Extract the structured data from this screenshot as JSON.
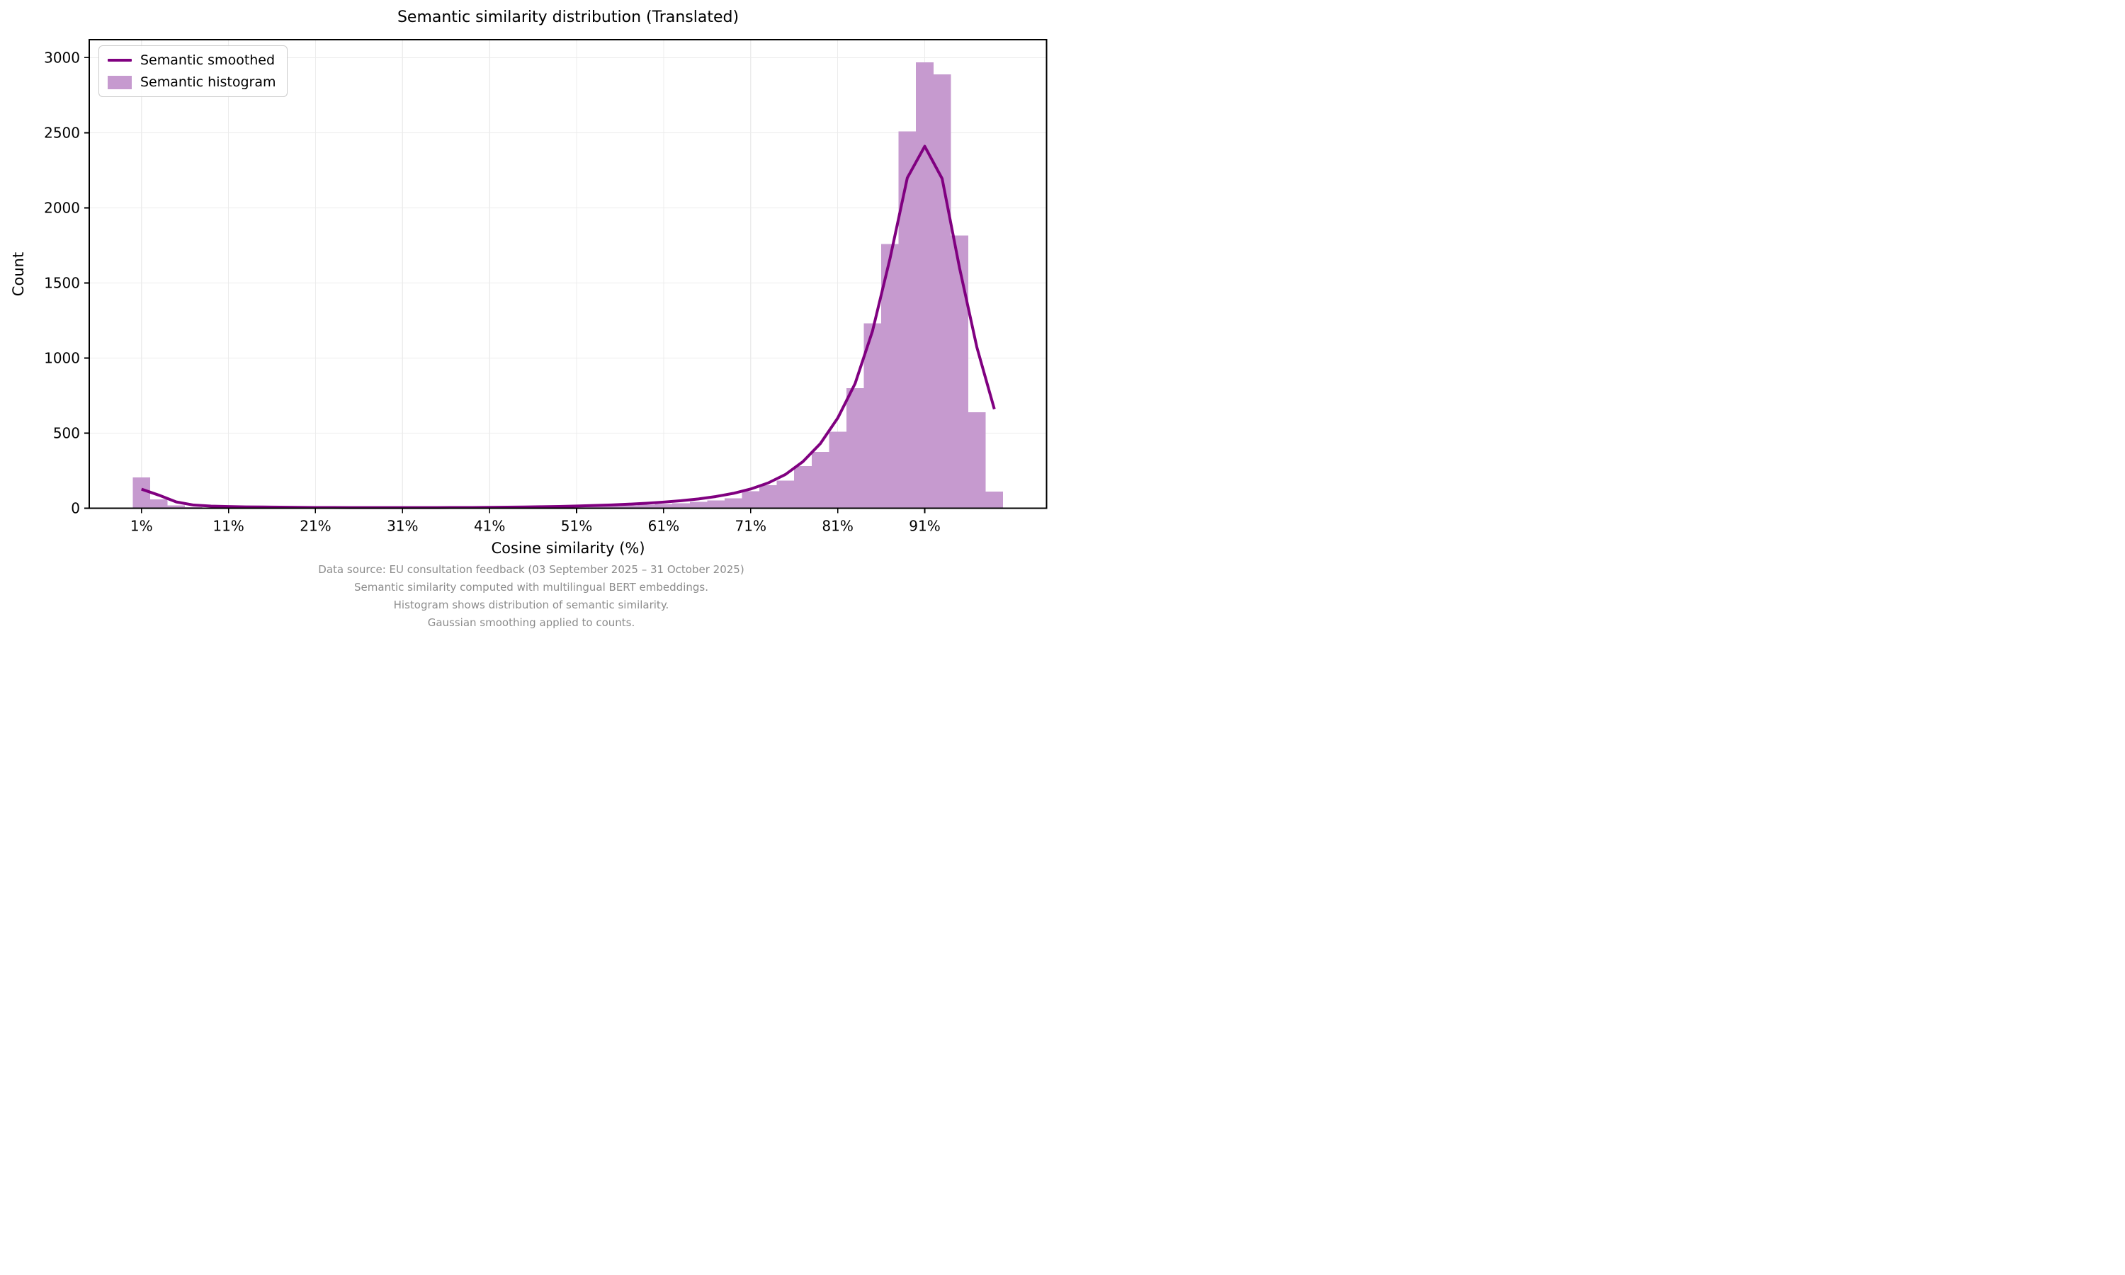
{
  "title": "Semantic similarity distribution (Translated)",
  "axes": {
    "xlabel": "Cosine similarity (%)",
    "ylabel": "Count",
    "xticks": [
      1,
      11,
      21,
      31,
      41,
      51,
      61,
      71,
      81,
      91
    ],
    "xtick_labels": [
      "1%",
      "11%",
      "21%",
      "31%",
      "41%",
      "51%",
      "61%",
      "71%",
      "81%",
      "91%"
    ],
    "yticks": [
      0,
      500,
      1000,
      1500,
      2000,
      2500,
      3000
    ],
    "xlim": [
      -5,
      105
    ],
    "ylim": [
      0,
      3120
    ],
    "grid": true
  },
  "legend": {
    "position": "upper-left",
    "items": [
      {
        "label": "Semantic smoothed",
        "type": "line"
      },
      {
        "label": "Semantic histogram",
        "type": "patch"
      }
    ]
  },
  "footer_lines": [
    "Data source: EU consultation feedback (03 September 2025 – 31 October 2025)",
    "Semantic similarity computed with multilingual BERT embeddings.",
    "Histogram shows distribution of semantic similarity.",
    "Gaussian smoothing applied to counts."
  ],
  "colors": {
    "line": "#800080",
    "bar_fill": "#c69acf",
    "grid": "#ececec",
    "spine": "#000000",
    "text": "#000000",
    "footer_text": "#8c8c8c",
    "background": "#ffffff"
  },
  "chart_data": {
    "type": "histogram+line",
    "title": "Semantic similarity distribution (Translated)",
    "xlabel": "Cosine similarity (%)",
    "ylabel": "Count",
    "bin_width_pct": 2,
    "bin_edges": [
      0,
      2,
      4,
      6,
      8,
      10,
      12,
      14,
      16,
      18,
      20,
      22,
      24,
      26,
      28,
      30,
      32,
      34,
      36,
      38,
      40,
      42,
      44,
      46,
      48,
      50,
      52,
      54,
      56,
      58,
      60,
      62,
      64,
      66,
      68,
      70,
      72,
      74,
      76,
      78,
      80,
      82,
      84,
      86,
      88,
      90,
      92,
      94,
      96,
      98,
      100
    ],
    "bin_counts": [
      205,
      60,
      18,
      6,
      4,
      3,
      2,
      2,
      2,
      2,
      2,
      2,
      2,
      2,
      2,
      2,
      2,
      2,
      3,
      3,
      3,
      4,
      5,
      6,
      8,
      10,
      12,
      15,
      19,
      24,
      28,
      33,
      42,
      52,
      66,
      114,
      153,
      184,
      280,
      375,
      510,
      800,
      1230,
      1760,
      2510,
      2970,
      2890,
      1815,
      640,
      110
    ],
    "series": [
      {
        "name": "Semantic smoothed",
        "x": [
          1,
          3,
          5,
          7,
          9,
          11,
          13,
          15,
          17,
          19,
          21,
          23,
          25,
          27,
          29,
          31,
          33,
          35,
          37,
          39,
          41,
          43,
          45,
          47,
          49,
          51,
          53,
          55,
          57,
          59,
          61,
          63,
          65,
          67,
          69,
          71,
          73,
          75,
          77,
          79,
          81,
          83,
          85,
          87,
          89,
          91,
          93,
          95,
          97,
          99
        ],
        "y": [
          127,
          87,
          42,
          21,
          14,
          11,
          9,
          8,
          7,
          6,
          5,
          5,
          4,
          4,
          4,
          4,
          4,
          4,
          5,
          5,
          6,
          7,
          8,
          10,
          12,
          15,
          18,
          22,
          27,
          33,
          41,
          50,
          62,
          78,
          99,
          128,
          168,
          225,
          310,
          430,
          600,
          830,
          1180,
          1660,
          2200,
          2410,
          2195,
          1600,
          1070,
          660
        ]
      },
      {
        "name": "Semantic histogram",
        "note": "bar heights given in bin_counts"
      }
    ]
  }
}
